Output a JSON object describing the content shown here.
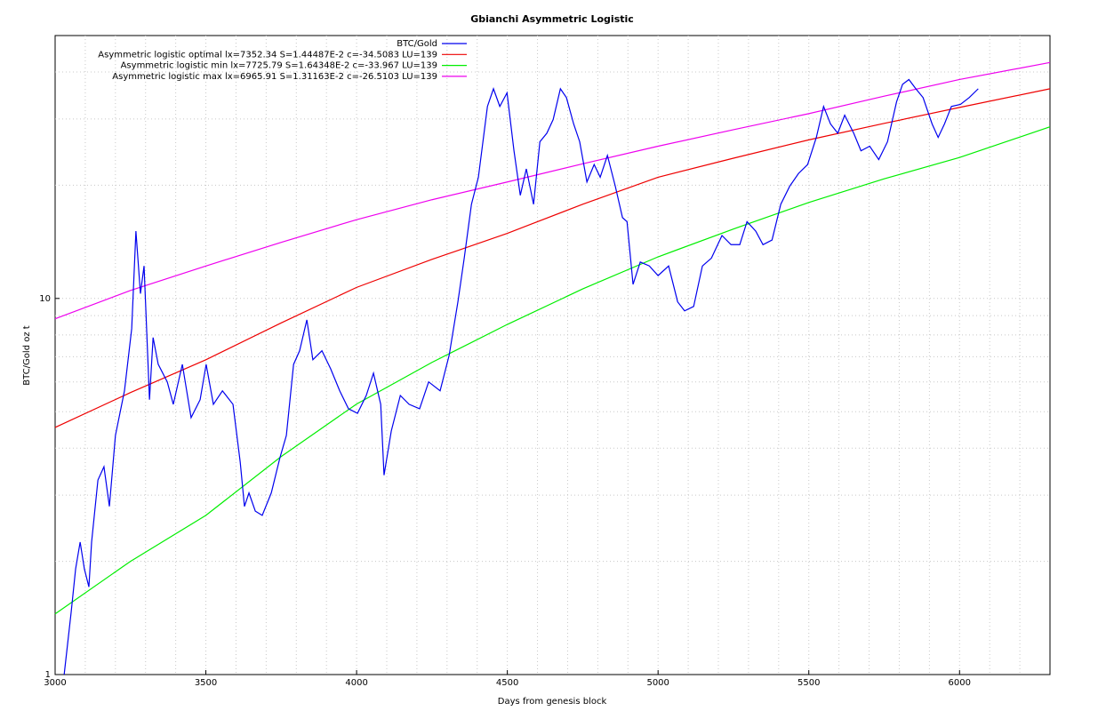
{
  "chart_data": {
    "type": "line",
    "title": "Gbianchi Asymmetric Logistic",
    "x_label": "Days from genesis block",
    "y_label": "BTC/Gold oz t",
    "log_y": true,
    "legend": "top-right",
    "xlim": [
      3000,
      6300
    ],
    "xticks": [
      3000,
      3500,
      4000,
      4500,
      5000,
      5500,
      6000
    ],
    "ylim": [
      1,
      50
    ],
    "yticks": [
      1,
      10
    ],
    "xgrid": [
      3100,
      3200,
      3300,
      3400,
      3500,
      3600,
      3700,
      3800,
      3900,
      4000,
      4100,
      4200,
      4300,
      4400,
      4500,
      4600,
      4700,
      4800,
      4900,
      5000,
      5100,
      5200,
      5300,
      5400,
      5500,
      5600,
      5700,
      5800,
      5900,
      6000,
      6100,
      6200
    ],
    "ygrid": [
      2,
      3,
      4,
      5,
      6,
      7,
      8,
      9,
      10,
      20,
      30,
      40
    ],
    "series": [
      {
        "name": "BTC/Gold",
        "color": "#0000ee",
        "x": [
          3030,
          3053,
          3068,
          3083,
          3097,
          3112,
          3121,
          3142,
          3162,
          3180,
          3200,
          3230,
          3254,
          3268,
          3283,
          3295,
          3313,
          3325,
          3342,
          3372,
          3392,
          3422,
          3451,
          3481,
          3501,
          3525,
          3555,
          3590,
          3614,
          3628,
          3643,
          3664,
          3687,
          3717,
          3746,
          3767,
          3791,
          3811,
          3835,
          3855,
          3885,
          3914,
          3944,
          3973,
          4003,
          4032,
          4056,
          4080,
          4091,
          4115,
          4145,
          4174,
          4209,
          4239,
          4277,
          4307,
          4336,
          4357,
          4381,
          4404,
          4434,
          4454,
          4475,
          4499,
          4522,
          4543,
          4563,
          4587,
          4608,
          4631,
          4652,
          4676,
          4696,
          4720,
          4740,
          4764,
          4788,
          4808,
          4832,
          4858,
          4882,
          4897,
          4917,
          4941,
          4971,
          5000,
          5035,
          5065,
          5088,
          5118,
          5147,
          5177,
          5212,
          5242,
          5271,
          5295,
          5324,
          5348,
          5378,
          5407,
          5437,
          5466,
          5496,
          5525,
          5549,
          5572,
          5596,
          5619,
          5649,
          5673,
          5702,
          5732,
          5761,
          5791,
          5811,
          5832,
          5855,
          5879,
          5909,
          5929,
          5950,
          5973,
          6003,
          6032,
          6062
        ],
        "values": [
          1.0,
          1.46,
          1.91,
          2.25,
          1.91,
          1.71,
          2.25,
          3.29,
          3.57,
          2.8,
          4.32,
          5.68,
          8.31,
          15.1,
          10.3,
          12.2,
          5.38,
          7.87,
          6.68,
          6.0,
          5.23,
          6.68,
          4.82,
          5.38,
          6.68,
          5.23,
          5.68,
          5.23,
          3.67,
          2.8,
          3.04,
          2.72,
          2.65,
          3.04,
          3.78,
          4.32,
          6.68,
          7.26,
          8.77,
          6.87,
          7.26,
          6.5,
          5.68,
          5.09,
          4.95,
          5.52,
          6.33,
          5.23,
          3.39,
          4.44,
          5.52,
          5.23,
          5.09,
          6.0,
          5.68,
          7.06,
          9.79,
          12.8,
          17.8,
          21.0,
          32.4,
          36.1,
          32.4,
          35.2,
          24.7,
          18.8,
          22.1,
          17.8,
          26.1,
          27.5,
          29.9,
          36.1,
          34.2,
          29.1,
          26.1,
          20.4,
          22.7,
          21.0,
          24.0,
          19.9,
          16.4,
          16.0,
          10.9,
          12.5,
          12.2,
          11.5,
          12.2,
          9.79,
          9.27,
          9.52,
          12.2,
          12.8,
          14.7,
          13.9,
          13.9,
          16.0,
          15.1,
          13.9,
          14.3,
          17.8,
          19.9,
          21.5,
          22.7,
          26.8,
          32.4,
          29.1,
          27.5,
          30.7,
          27.5,
          24.7,
          25.4,
          23.4,
          26.1,
          33.3,
          37.1,
          38.2,
          36.1,
          34.2,
          29.1,
          26.8,
          29.1,
          32.4,
          32.8,
          34.2,
          36.1
        ]
      },
      {
        "name": "Asymmetric logistic optimal lx=7352.34 S=1.44487E-2 c=-34.5083 LU=139",
        "color": "#ee0000",
        "x": [
          3000,
          3250,
          3500,
          3750,
          4000,
          4250,
          4500,
          4750,
          5000,
          5250,
          5500,
          5750,
          6000,
          6300
        ],
        "values": [
          4.54,
          5.62,
          6.87,
          8.61,
          10.7,
          12.7,
          14.9,
          17.8,
          21.0,
          23.6,
          26.4,
          29.2,
          32.2,
          36.1
        ]
      },
      {
        "name": "Asymmetric logistic min lx=7725.79 S=1.64348E-2 c=-33.967 LU=139",
        "color": "#00ee00",
        "x": [
          3000,
          3250,
          3500,
          3750,
          4000,
          4250,
          4500,
          4750,
          5000,
          5250,
          5500,
          5750,
          6000,
          6300
        ],
        "values": [
          1.45,
          2.0,
          2.65,
          3.8,
          5.24,
          6.76,
          8.53,
          10.6,
          12.9,
          15.3,
          18.0,
          20.8,
          23.7,
          28.6
        ]
      },
      {
        "name": "Asymmetric logistic max lx=6965.91 S=1.31163E-2 c=-26.5103 LU=139",
        "color": "#ee00ee",
        "x": [
          3000,
          3250,
          3500,
          3750,
          4000,
          4250,
          4500,
          4750,
          5000,
          5250,
          5500,
          5750,
          6000,
          6300
        ],
        "values": [
          8.83,
          10.5,
          12.2,
          14.1,
          16.2,
          18.3,
          20.4,
          22.8,
          25.4,
          28.1,
          31.0,
          34.5,
          38.2,
          42.4
        ]
      }
    ]
  }
}
